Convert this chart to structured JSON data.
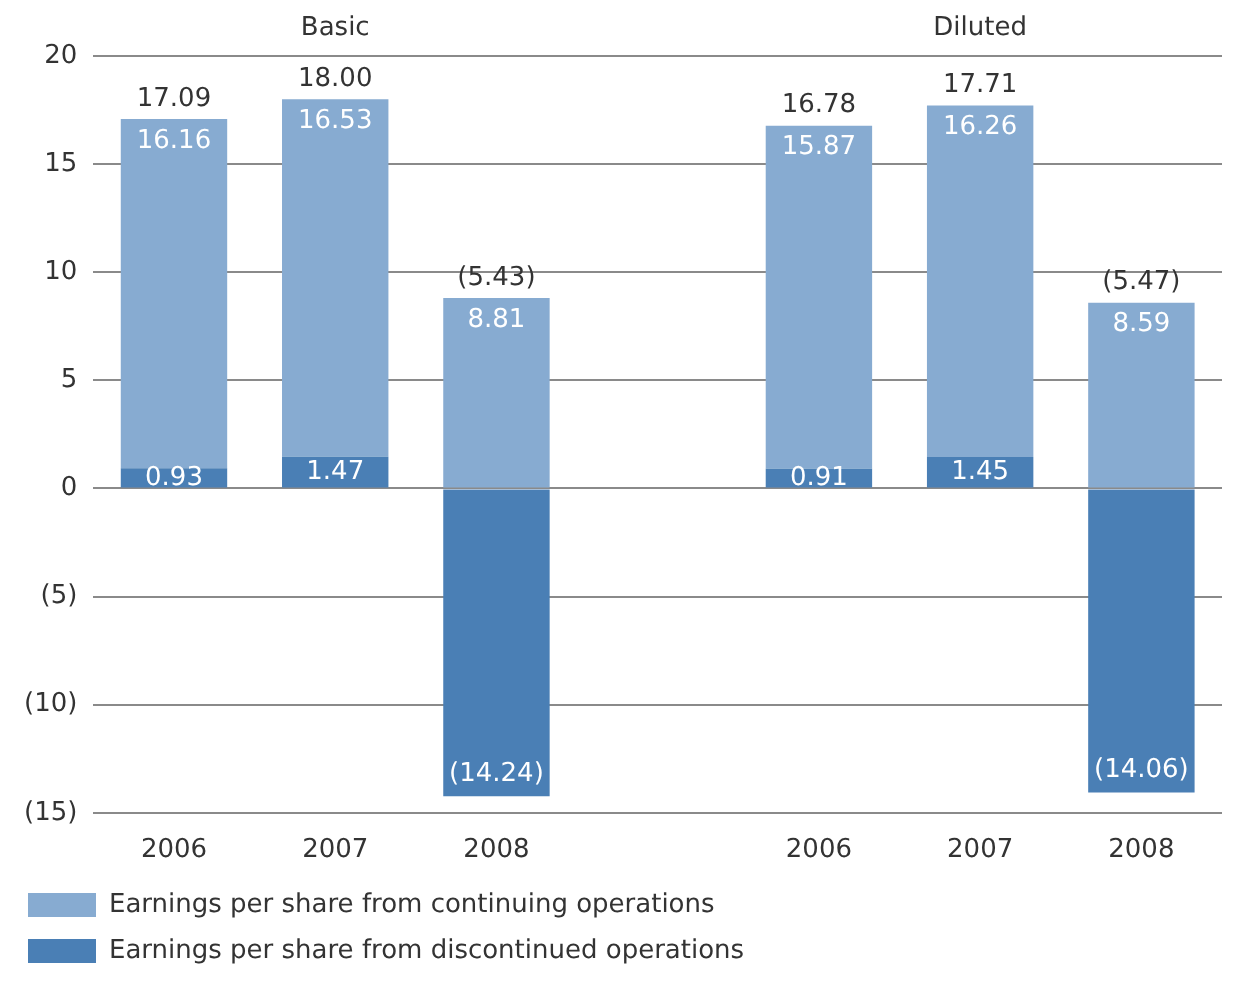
{
  "chart_data": {
    "type": "bar",
    "stacked": true,
    "categories": [
      "2006",
      "2007",
      "2008",
      null,
      "2006",
      "2007",
      "2008"
    ],
    "series": [
      {
        "name": "Earnings per share from discontinued operations",
        "color": "#4a7fb5",
        "values": [
          0.93,
          1.47,
          -14.24,
          null,
          0.91,
          1.45,
          -14.06
        ],
        "value_labels": [
          "0.93",
          "1.47",
          "(14.24)",
          null,
          "0.91",
          "1.45",
          "(14.06)"
        ]
      },
      {
        "name": "Earnings per share from continuing operations",
        "color": "#87abd1",
        "values": [
          16.16,
          16.53,
          8.81,
          null,
          15.87,
          16.26,
          8.59
        ],
        "value_labels": [
          "16.16",
          "16.53",
          "8.81",
          null,
          "15.87",
          "16.26",
          "8.59"
        ]
      }
    ],
    "totals": [
      "17.09",
      "18.00",
      "(5.43)",
      null,
      "16.78",
      "17.71",
      "(5.47)"
    ],
    "annotations": [
      "Basic",
      "Diluted"
    ],
    "ylim": [
      -15,
      20
    ],
    "yticks": [
      {
        "value": -15,
        "label": "(15)"
      },
      {
        "value": -10,
        "label": "(10)"
      },
      {
        "value": -5,
        "label": "(5)"
      },
      0,
      5,
      10,
      15,
      20
    ],
    "grid": "y",
    "legend": "bottom left"
  }
}
